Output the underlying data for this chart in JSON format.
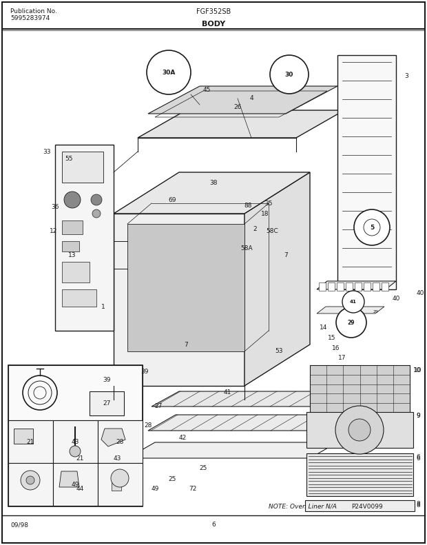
{
  "title": "BODY",
  "pub_label": "Publication No.",
  "pub_number": "5995283974",
  "model": "FGF352SB",
  "date": "09/98",
  "page": "6",
  "note_text": "NOTE: Oven Liner N/A",
  "part_code": "P24V0099",
  "bg_color": "#ffffff",
  "line_color": "#1a1a1a",
  "text_color": "#1a1a1a",
  "border_color": "#000000",
  "fig_width": 6.2,
  "fig_height": 7.91,
  "dpi": 100
}
